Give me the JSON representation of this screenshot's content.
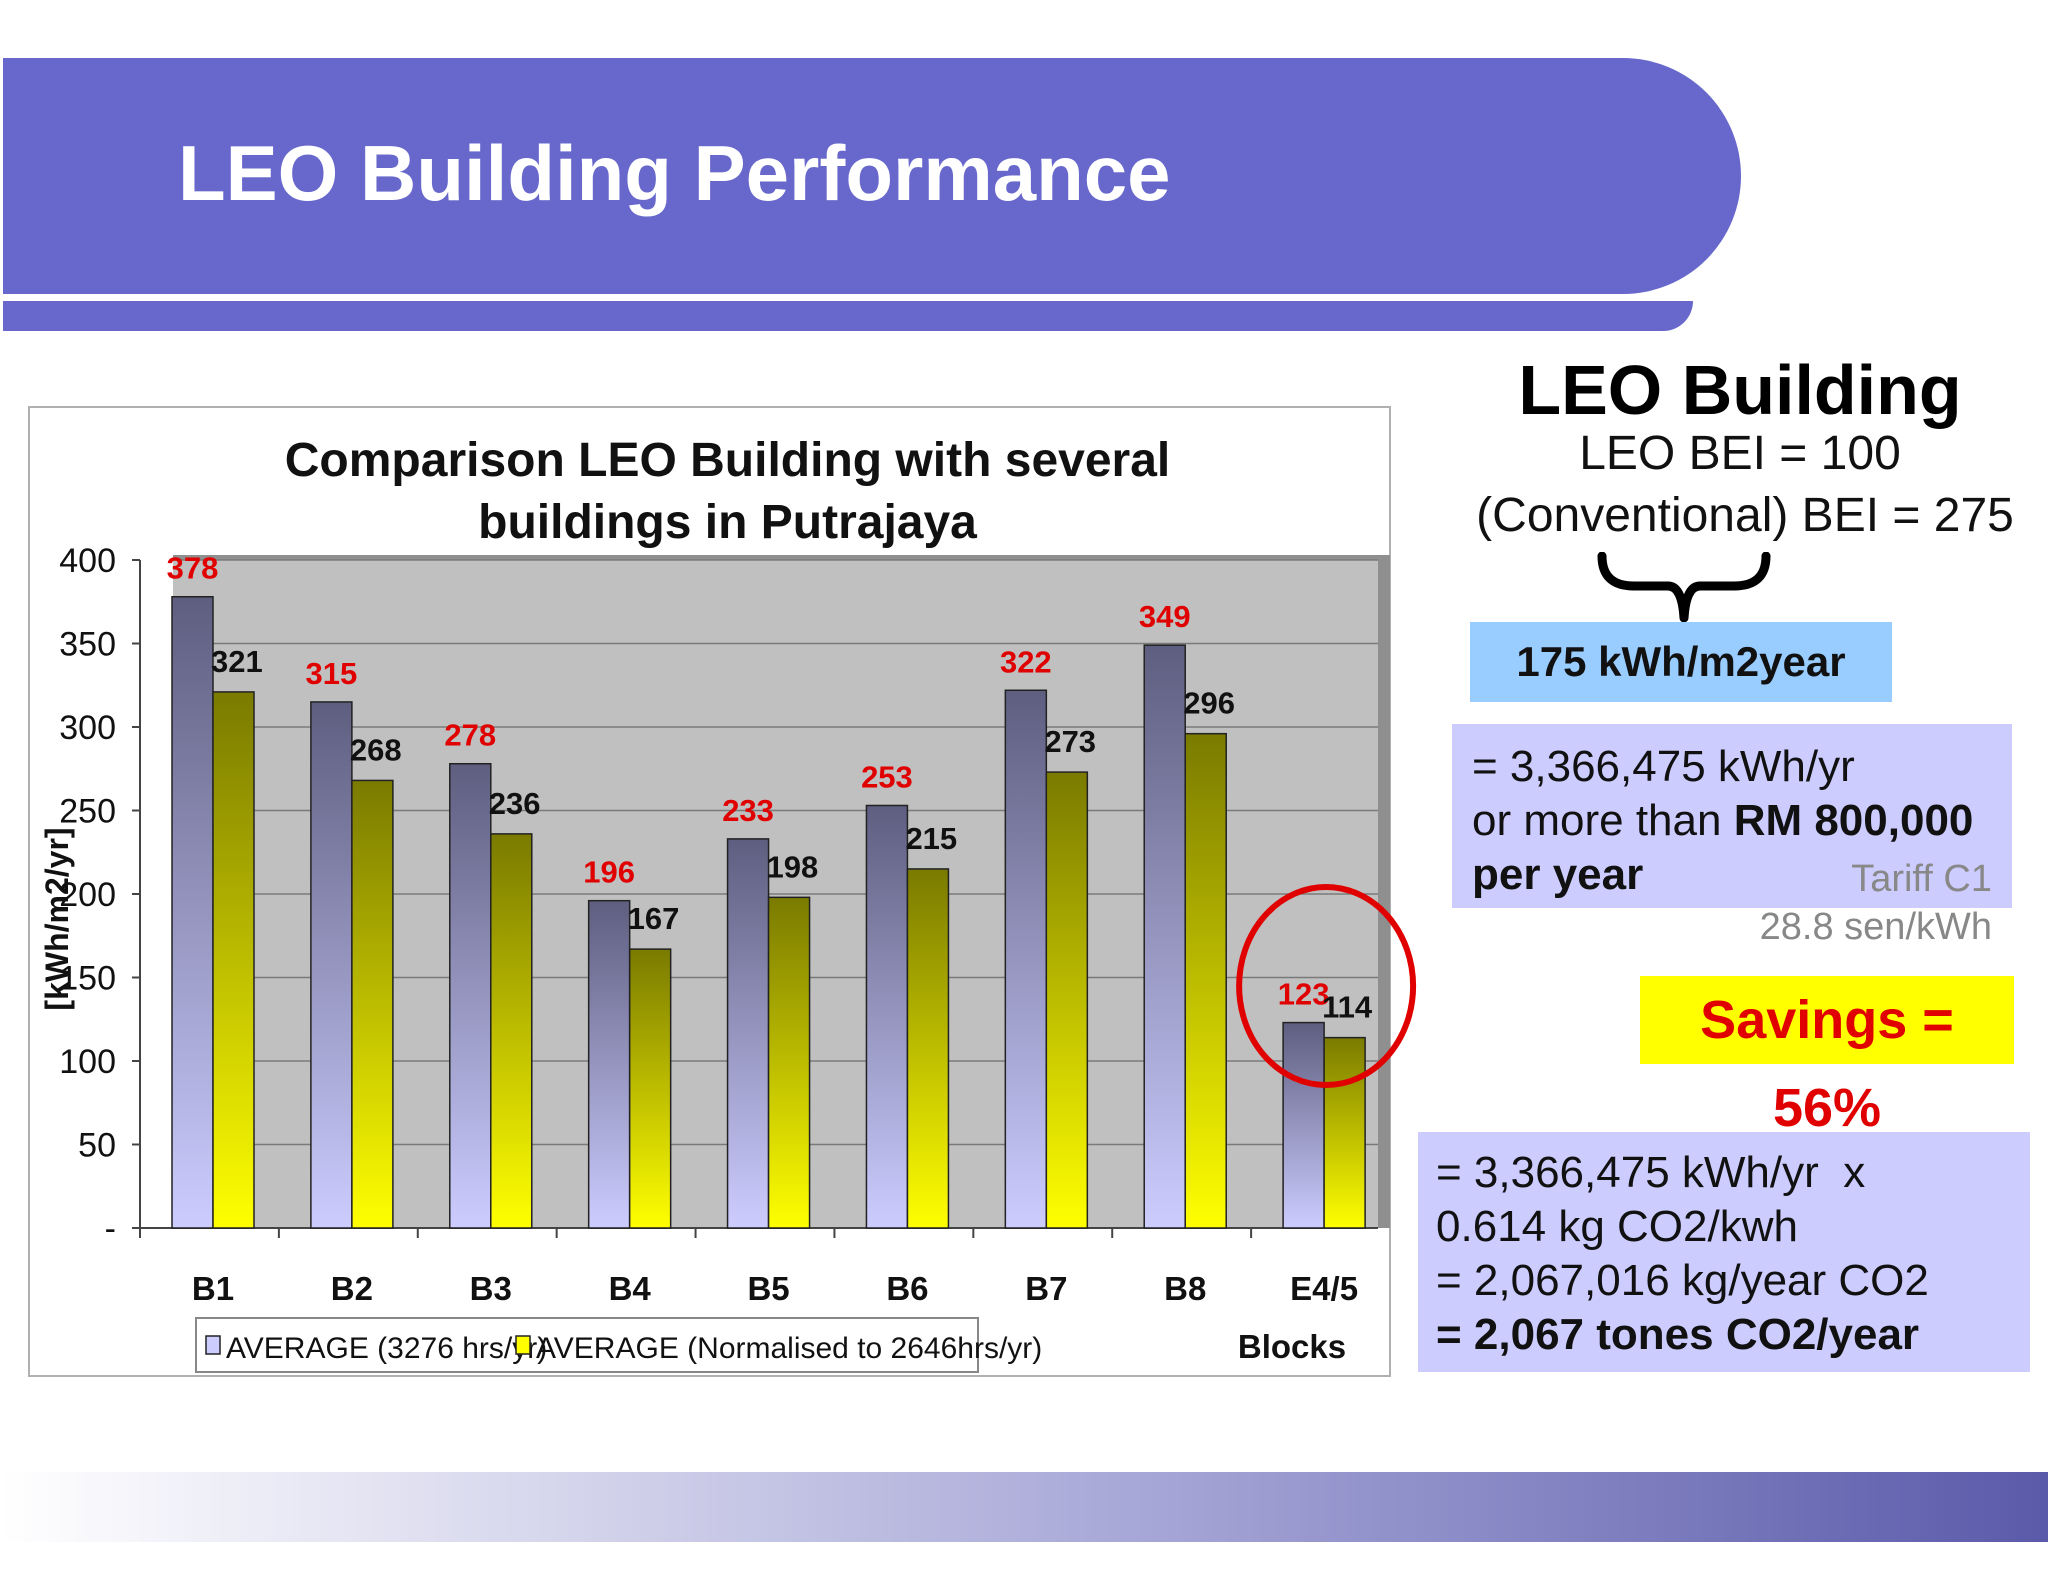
{
  "slide": {
    "title": "LEO Building Performance"
  },
  "chart_data": {
    "type": "bar",
    "title": "Comparison LEO Building with several buildings in Putrajaya",
    "xlabel": "Blocks",
    "ylabel": "[kWh/m2/yr]",
    "ylim": [
      0,
      400
    ],
    "yticks": [
      0,
      50,
      100,
      150,
      200,
      250,
      300,
      350,
      400
    ],
    "ytick_labels": [
      "-",
      "50",
      "100",
      "150",
      "200",
      "250",
      "300",
      "350",
      "400"
    ],
    "categories": [
      "B1",
      "B2",
      "B3",
      "B4",
      "B5",
      "B6",
      "B7",
      "B8",
      "E4/5"
    ],
    "series": [
      {
        "name": "AVERAGE (3276 hrs/yr)",
        "values": [
          378,
          315,
          278,
          196,
          233,
          253,
          322,
          349,
          123
        ],
        "labels": [
          "378",
          "315",
          "278",
          "196",
          "233",
          "253",
          "322",
          "349",
          "123"
        ],
        "color": "#5e5e80",
        "label_color": "#e00000"
      },
      {
        "name": "AVERAGE (Normalised to 2646hrs/yr)",
        "values": [
          321,
          268,
          236,
          167,
          198,
          215,
          273,
          296,
          114
        ],
        "labels": [
          "321",
          "268",
          "236",
          "167",
          "198",
          "215",
          "273",
          "296",
          "114"
        ],
        "color": "#8a8a00",
        "label_color": "#111111"
      }
    ],
    "grid": true,
    "legend": "bottom",
    "highlight": {
      "category": "E4/5",
      "shape": "circle",
      "color": "#e00000"
    },
    "plot_background": "#c0c0c0"
  },
  "panel": {
    "heading": "LEO Building",
    "leo_bei": "LEO BEI = 100",
    "conventional_bei": "(Conventional) BEI = 275",
    "difference": "175 kWh/m2year",
    "energy": {
      "line1": "= 3,366,475 kWh/yr",
      "line2_prefix": "or more than ",
      "line2_bold": "RM 800,000",
      "line3_bold": "per year"
    },
    "tariff": {
      "name": "Tariff C1",
      "rate": "28.8 sen/kWh"
    },
    "savings": "Savings = 56%",
    "co2": {
      "line1": "= 3,366,475 kWh/yr  x",
      "line2": "0.614 kg CO2/kwh",
      "line3": "= 2,067,016 kg/year CO2",
      "line4": "= 2,067 tones CO2/year"
    }
  },
  "colors": {
    "header": "#6868cc",
    "diff_box": "#99ccff",
    "info_box": "#ccccff",
    "savings_bg": "#ffff00",
    "savings_text": "#e00000"
  }
}
